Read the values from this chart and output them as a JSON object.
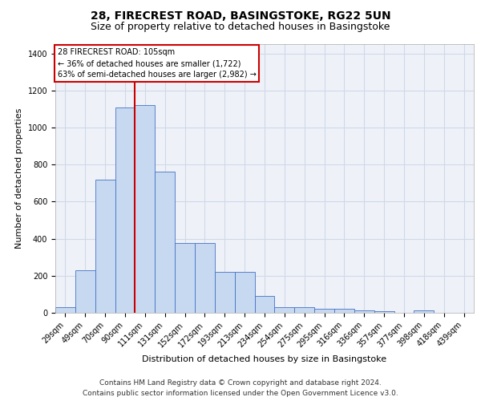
{
  "title_line1": "28, FIRECREST ROAD, BASINGSTOKE, RG22 5UN",
  "title_line2": "Size of property relative to detached houses in Basingstoke",
  "xlabel": "Distribution of detached houses by size in Basingstoke",
  "ylabel": "Number of detached properties",
  "footer_line1": "Contains HM Land Registry data © Crown copyright and database right 2024.",
  "footer_line2": "Contains public sector information licensed under the Open Government Licence v3.0.",
  "annotation_line1": "28 FIRECREST ROAD: 105sqm",
  "annotation_line2": "← 36% of detached houses are smaller (1,722)",
  "annotation_line3": "63% of semi-detached houses are larger (2,982) →",
  "bar_values": [
    30,
    230,
    720,
    1110,
    1120,
    760,
    375,
    375,
    220,
    220,
    90,
    30,
    30,
    20,
    20,
    15,
    10,
    0,
    15,
    0,
    0
  ],
  "categories": [
    "29sqm",
    "49sqm",
    "70sqm",
    "90sqm",
    "111sqm",
    "131sqm",
    "152sqm",
    "172sqm",
    "193sqm",
    "213sqm",
    "234sqm",
    "254sqm",
    "275sqm",
    "295sqm",
    "316sqm",
    "336sqm",
    "357sqm",
    "377sqm",
    "398sqm",
    "418sqm",
    "439sqm"
  ],
  "bar_color": "#c6d9f0",
  "bar_edge_color": "#4472c4",
  "vline_color": "#cc0000",
  "ylim": [
    0,
    1450
  ],
  "yticks": [
    0,
    200,
    400,
    600,
    800,
    1000,
    1200,
    1400
  ],
  "grid_color": "#d0d8e8",
  "bg_color": "#eef2f8",
  "annotation_box_color": "#cc0000",
  "title_fontsize": 10,
  "subtitle_fontsize": 9,
  "axis_label_fontsize": 8,
  "tick_fontsize": 7,
  "footer_fontsize": 6.5
}
